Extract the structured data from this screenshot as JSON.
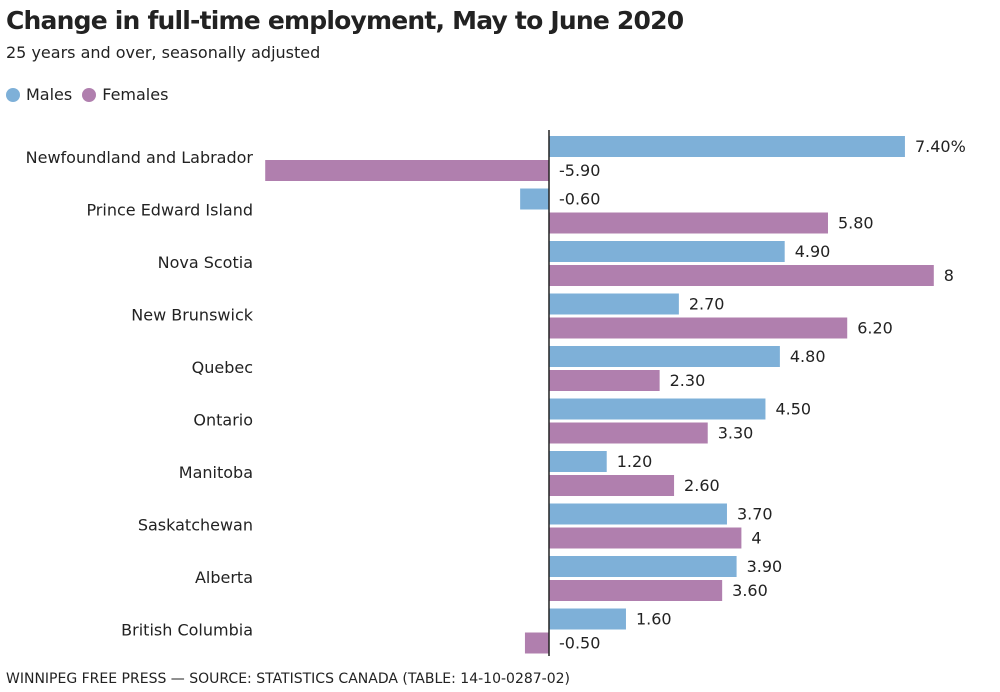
{
  "chart_data": {
    "type": "bar",
    "orientation": "horizontal",
    "title": "Change in full-time employment, May to June 2020",
    "subtitle": "25 years and over, seasonally adjusted",
    "source": "WINNIPEG FREE PRESS — SOURCE: STATISTICS CANADA (TABLE: 14-10-0287-02)",
    "legend_placement": "top-left",
    "grid": false,
    "categories": [
      "Newfoundland and Labrador",
      "Prince Edward Island",
      "Nova Scotia",
      "New Brunswick",
      "Quebec",
      "Ontario",
      "Manitoba",
      "Saskatchewan",
      "Alberta",
      "British Columbia"
    ],
    "series": [
      {
        "name": "Males",
        "color": "#7eb0d8",
        "values": [
          7.4,
          -0.6,
          4.9,
          2.7,
          4.8,
          4.5,
          1.2,
          3.7,
          3.9,
          1.6
        ],
        "labels": [
          "7.40%",
          "-0.60",
          "4.90",
          "2.70",
          "4.80",
          "4.50",
          "1.20",
          "3.70",
          "3.90",
          "1.60"
        ]
      },
      {
        "name": "Females",
        "color": "#b07fae",
        "values": [
          -5.9,
          5.8,
          8,
          6.2,
          2.3,
          3.3,
          2.6,
          4,
          3.6,
          -0.5
        ],
        "labels": [
          "-5.90",
          "5.80",
          "8",
          "6.20",
          "2.30",
          "3.30",
          "2.60",
          "4",
          "3.60",
          "-0.50"
        ]
      }
    ]
  }
}
